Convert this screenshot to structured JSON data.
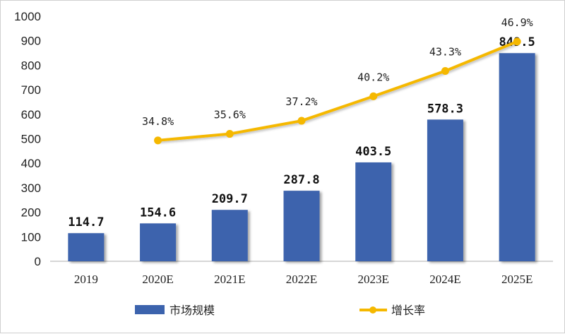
{
  "chart_data": {
    "type": "bar",
    "categories": [
      "2019",
      "2020E",
      "2021E",
      "2022E",
      "2023E",
      "2024E",
      "2025E"
    ],
    "series": [
      {
        "name": "市场规模",
        "type": "bar",
        "values": [
          114.7,
          154.6,
          209.7,
          287.8,
          403.5,
          578.3,
          849.5
        ],
        "labels": [
          "114.7",
          "154.6",
          "209.7",
          "287.8",
          "403.5",
          "578.3",
          "849.5"
        ],
        "color": "#3c63ad"
      },
      {
        "name": "增长率",
        "type": "line",
        "axis": "secondary",
        "values": [
          null,
          34.8,
          35.6,
          37.2,
          40.2,
          43.3,
          46.9
        ],
        "labels": [
          "",
          "34.8%",
          "35.6%",
          "37.2%",
          "40.2%",
          "43.3%",
          "46.9%"
        ],
        "color": "#f5b800"
      }
    ],
    "yticks": [
      "0",
      "100",
      "200",
      "300",
      "400",
      "500",
      "600",
      "700",
      "800",
      "900",
      "1000"
    ],
    "ylim": [
      0,
      1000
    ],
    "y2lim": [
      20,
      50
    ],
    "grid": false,
    "legend": "bottom"
  }
}
